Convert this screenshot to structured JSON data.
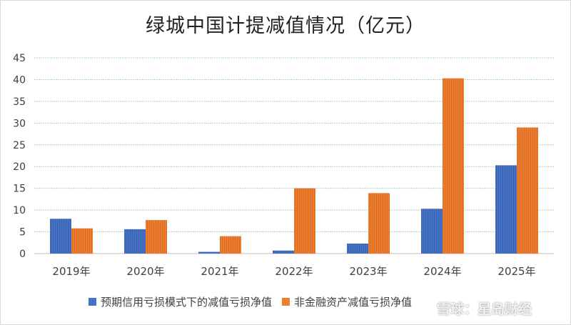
{
  "chart_data": {
    "type": "bar",
    "title": "绿城中国计提减值情况（亿元）",
    "xlabel": "",
    "ylabel": "",
    "categories": [
      "2019年",
      "2020年",
      "2021年",
      "2022年",
      "2023年",
      "2024年",
      "2025年"
    ],
    "series": [
      {
        "name": "预期信用亏损模式下的减值亏损净值",
        "color": "#4472c4",
        "values": [
          8.0,
          5.6,
          0.4,
          0.7,
          2.3,
          10.3,
          20.3
        ]
      },
      {
        "name": "非金融资产减值亏损净值",
        "color": "#ed7d31",
        "values": [
          5.8,
          7.7,
          4.0,
          15.0,
          13.9,
          40.3,
          29.0
        ]
      }
    ],
    "ylim": [
      0,
      45
    ],
    "yticks": [
      0,
      5,
      10,
      15,
      20,
      25,
      30,
      35,
      40,
      45
    ],
    "grid": true,
    "legend_position": "bottom"
  },
  "watermark": "雪球：星岛财经"
}
